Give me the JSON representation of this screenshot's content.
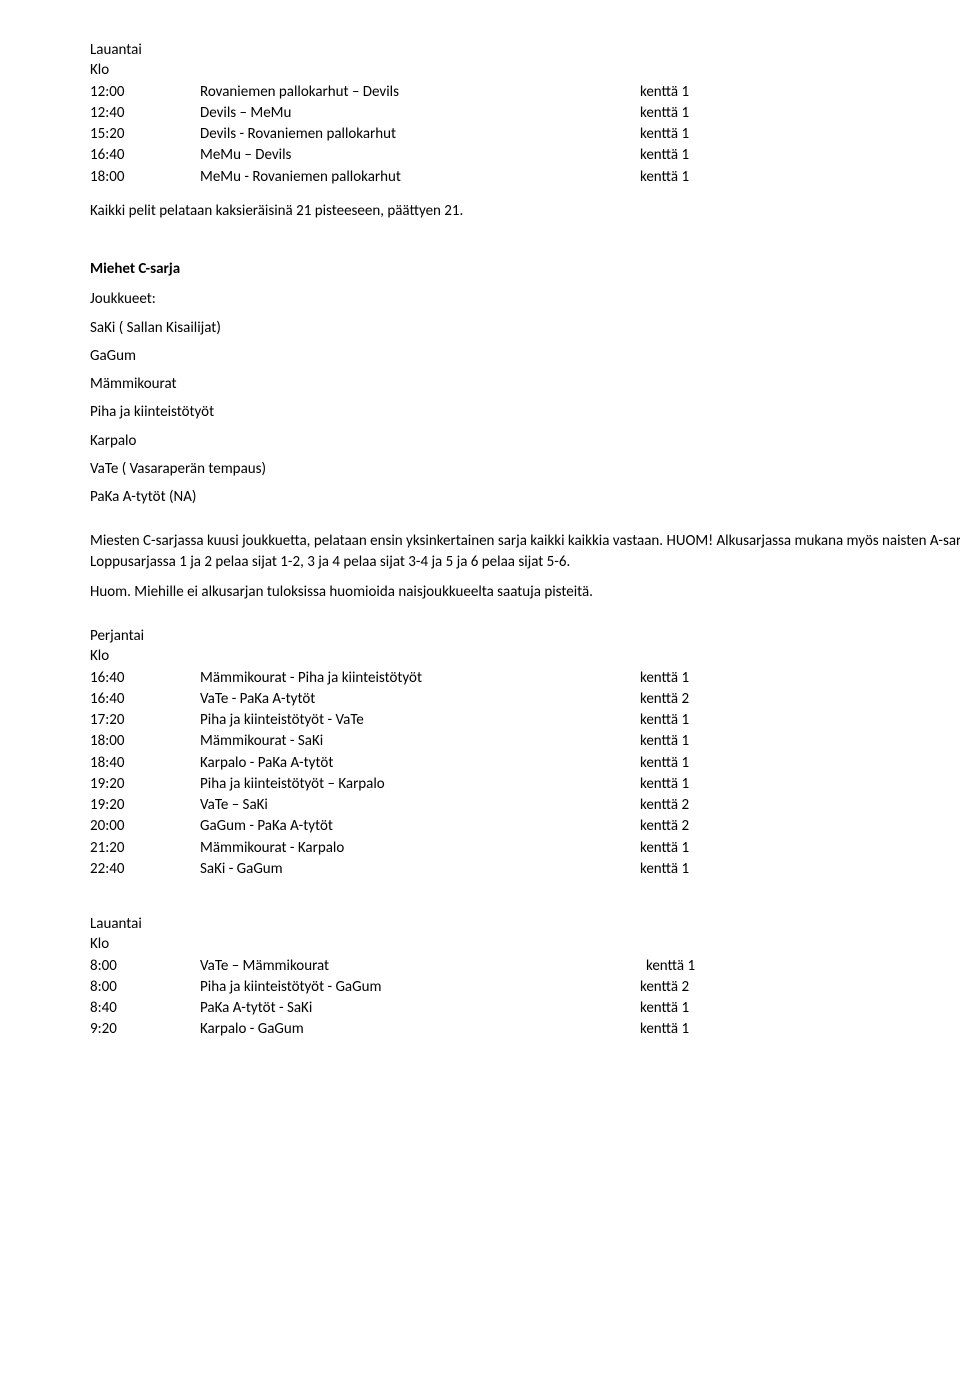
{
  "top": {
    "heading_day": "Lauantai",
    "heading_klo": "Klo",
    "rows": [
      {
        "time": "12:00",
        "match": "Rovaniemen pallokarhut – Devils",
        "kentta": "kenttä 1"
      },
      {
        "time": "12:40",
        "match": "Devils – MeMu",
        "kentta": "kenttä 1"
      },
      {
        "time": "15:20",
        "match": "Devils - Rovaniemen pallokarhut",
        "kentta": "kenttä 1"
      },
      {
        "time": "16:40",
        "match": "MeMu – Devils",
        "kentta": "kenttä 1"
      },
      {
        "time": "18:00",
        "match": "MeMu - Rovaniemen pallokarhut",
        "kentta": "kenttä 1"
      }
    ],
    "note": "Kaikki pelit pelataan kaksieräisinä 21 pisteeseen, päättyen 21."
  },
  "section": {
    "title": "Miehet C-sarja",
    "teams_label": "Joukkueet:",
    "teams": [
      "SaKi ( Sallan Kisailijat)",
      "GaGum",
      "Mämmikourat",
      "Piha ja kiinteistötyöt",
      "Karpalo",
      "VaTe ( Vasaraperän tempaus)",
      "PaKa A-tytöt (NA)"
    ],
    "desc1": "Miesten C-sarjassa kuusi joukkuetta, pelataan ensin yksinkertainen sarja kaikki kaikkia vastaan. HUOM! Alkusarjassa mukana myös naisten A-sarjan joukkue. Loppusarjassa 1 ja 2 pelaa sijat 1-2, 3 ja 4 pelaa sijat 3-4 ja 5 ja 6 pelaa sijat 5-6.",
    "desc2": "Huom. Miehille ei alkusarjan tuloksissa huomioida naisjoukkueelta saatuja pisteitä."
  },
  "friday": {
    "heading_day": "Perjantai",
    "heading_klo": "Klo",
    "rows": [
      {
        "time": "16:40",
        "match": "Mämmikourat - Piha ja kiinteistötyöt",
        "kentta": "kenttä 1"
      },
      {
        "time": "16:40",
        "match": "VaTe - PaKa A-tytöt",
        "kentta": "kenttä 2"
      },
      {
        "time": "17:20",
        "match": "Piha ja kiinteistötyöt - VaTe",
        "kentta": "kenttä 1"
      },
      {
        "time": "18:00",
        "match": "Mämmikourat - SaKi",
        "kentta": "kenttä 1"
      },
      {
        "time": "18:40",
        "match": "Karpalo - PaKa A-tytöt",
        "kentta": "kenttä 1"
      },
      {
        "time": "19:20",
        "match": "Piha ja kiinteistötyöt – Karpalo",
        "kentta": "kenttä 1"
      },
      {
        "time": "19:20",
        "match": "VaTe – SaKi",
        "kentta": "kenttä 2"
      },
      {
        "time": "20:00",
        "match": "GaGum - PaKa A-tytöt",
        "kentta": "kenttä 2"
      },
      {
        "time": "21:20",
        "match": "Mämmikourat - Karpalo",
        "kentta": "kenttä 1"
      },
      {
        "time": "22:40",
        "match": "SaKi - GaGum",
        "kentta": "kenttä 1"
      }
    ]
  },
  "saturday": {
    "heading_day": "Lauantai",
    "heading_klo": "Klo",
    "rows": [
      {
        "time": "8:00",
        "match": "VaTe – Mämmikourat",
        "kentta": "kenttä 1",
        "extra_indent": true
      },
      {
        "time": "8:00",
        "match": "Piha ja kiinteistötyöt - GaGum",
        "kentta": "kenttä 2"
      },
      {
        "time": "8:40",
        "match": "PaKa A-tytöt - SaKi",
        "kentta": "kenttä 1"
      },
      {
        "time": "9:20",
        "match": "Karpalo - GaGum",
        "kentta": "kenttä 1"
      }
    ]
  }
}
